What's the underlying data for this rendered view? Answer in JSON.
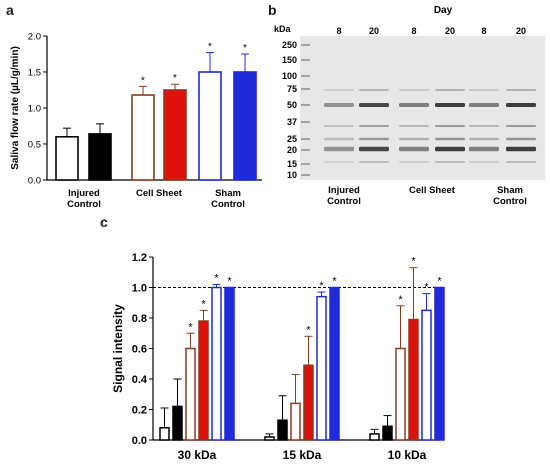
{
  "panels": {
    "a": "a",
    "b": "b",
    "c": "c"
  },
  "colors": {
    "injured": "#000000",
    "cell_sheet_open": "#8b3a1e",
    "cell_sheet_fill": "#e0120e",
    "sham": "#1f2ad9"
  },
  "chart_data": [
    {
      "type": "bar",
      "panel": "a",
      "ylabel": "Saliva flow rate (µL/g/min)",
      "ylim": [
        0,
        2.0
      ],
      "yticks": [
        "0.0",
        "0.5",
        "1.0",
        "1.5",
        "2.0"
      ],
      "groups": [
        {
          "label_line1": "Injured",
          "label_line2": "Control"
        },
        {
          "label_line1": "Cell Sheet",
          "label_line2": ""
        },
        {
          "label_line1": "Sham",
          "label_line2": "Control"
        }
      ],
      "series": [
        {
          "values": [
            0.6,
            0.64,
            1.18,
            1.25,
            1.5,
            1.5
          ],
          "errors": [
            0.12,
            0.14,
            0.12,
            0.08,
            0.27,
            0.25
          ],
          "styles": [
            "open-black",
            "solid-black",
            "open-brown",
            "solid-red",
            "open-blue",
            "solid-blue"
          ],
          "significance": [
            "",
            "",
            "*",
            "*",
            "*",
            "*"
          ]
        }
      ]
    },
    {
      "type": "image",
      "panel": "b",
      "header": "Day",
      "unit_label": "kDa",
      "markers": [
        "250",
        "150",
        "100",
        "75",
        "50",
        "37",
        "25",
        "20",
        "15",
        "10"
      ],
      "lane_days": [
        "8",
        "20",
        "8",
        "20",
        "8",
        "20"
      ],
      "group_labels": [
        {
          "line1": "Injured",
          "line2": "Control"
        },
        {
          "line1": "Cell Sheet",
          "line2": ""
        },
        {
          "line1": "Sham",
          "line2": "Control"
        }
      ]
    },
    {
      "type": "bar",
      "panel": "c",
      "ylabel": "Signal intensity",
      "ylim": [
        0,
        1.2
      ],
      "yticks": [
        "0.0",
        "0.2",
        "0.4",
        "0.6",
        "0.8",
        "1.0",
        "1.2"
      ],
      "reference_line": 1.0,
      "categories": [
        "30 kDa",
        "15 kDa",
        "10 kDa"
      ],
      "bar_styles": [
        "open-black",
        "solid-black",
        "open-brown",
        "solid-red",
        "open-blue",
        "solid-blue"
      ],
      "groups": [
        {
          "values": [
            0.08,
            0.22,
            0.6,
            0.78,
            1.0,
            1.0
          ],
          "errors": [
            0.13,
            0.18,
            0.1,
            0.07,
            0.02,
            0
          ],
          "significance": [
            "",
            "",
            "*",
            "*",
            "*",
            "*"
          ]
        },
        {
          "values": [
            0.02,
            0.13,
            0.24,
            0.49,
            0.94,
            1.0
          ],
          "errors": [
            0.02,
            0.16,
            0.19,
            0.19,
            0.03,
            0
          ],
          "significance": [
            "",
            "",
            "",
            "*",
            "*",
            "*"
          ]
        },
        {
          "values": [
            0.04,
            0.09,
            0.6,
            0.79,
            0.85,
            1.0
          ],
          "errors": [
            0.03,
            0.07,
            0.28,
            0.34,
            0.11,
            0
          ],
          "significance": [
            "",
            "",
            "*",
            "*",
            "*",
            "*"
          ]
        }
      ]
    }
  ]
}
